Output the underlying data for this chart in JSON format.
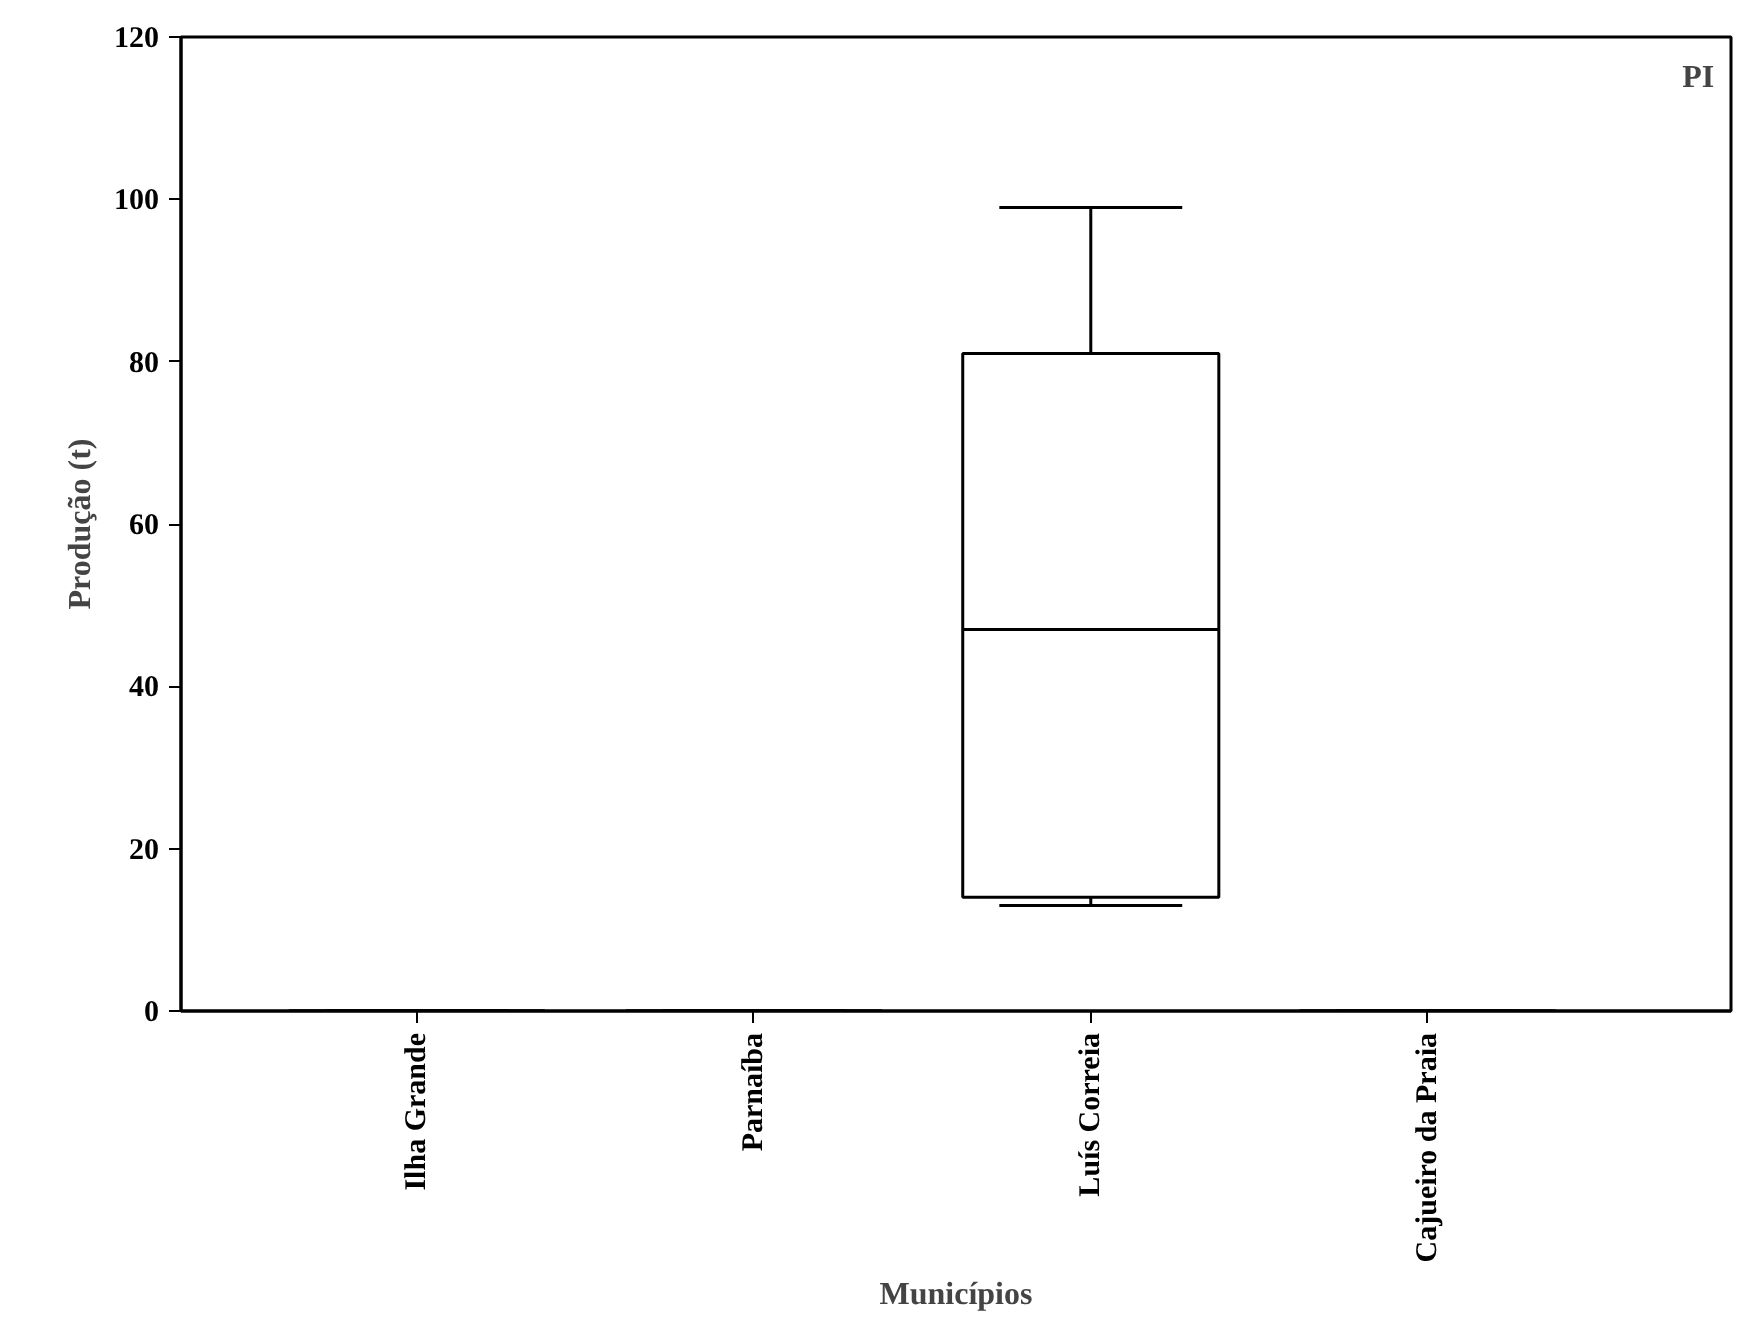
{
  "chart_data": {
    "type": "box",
    "xlabel": "Municípios",
    "ylabel": "Produção (t)",
    "categories": [
      "Ilha Grande",
      "Parnaíba",
      "Luís Correia",
      "Cajueiro da Praia"
    ],
    "boxes": [
      {
        "low": 0,
        "q1": 0,
        "median": 0,
        "q3": 0,
        "high": 0
      },
      {
        "low": 0,
        "q1": 0,
        "median": 0,
        "q3": 0,
        "high": 0
      },
      {
        "low": 13,
        "q1": 14,
        "median": 47,
        "q3": 81,
        "high": 99
      },
      {
        "low": 0,
        "q1": 0,
        "median": 0,
        "q3": 0,
        "high": 0
      }
    ],
    "ylim": [
      0,
      120
    ],
    "yticks": [
      0,
      20,
      40,
      60,
      80,
      100,
      120
    ],
    "annotations": [
      "PI"
    ],
    "grid": false
  }
}
